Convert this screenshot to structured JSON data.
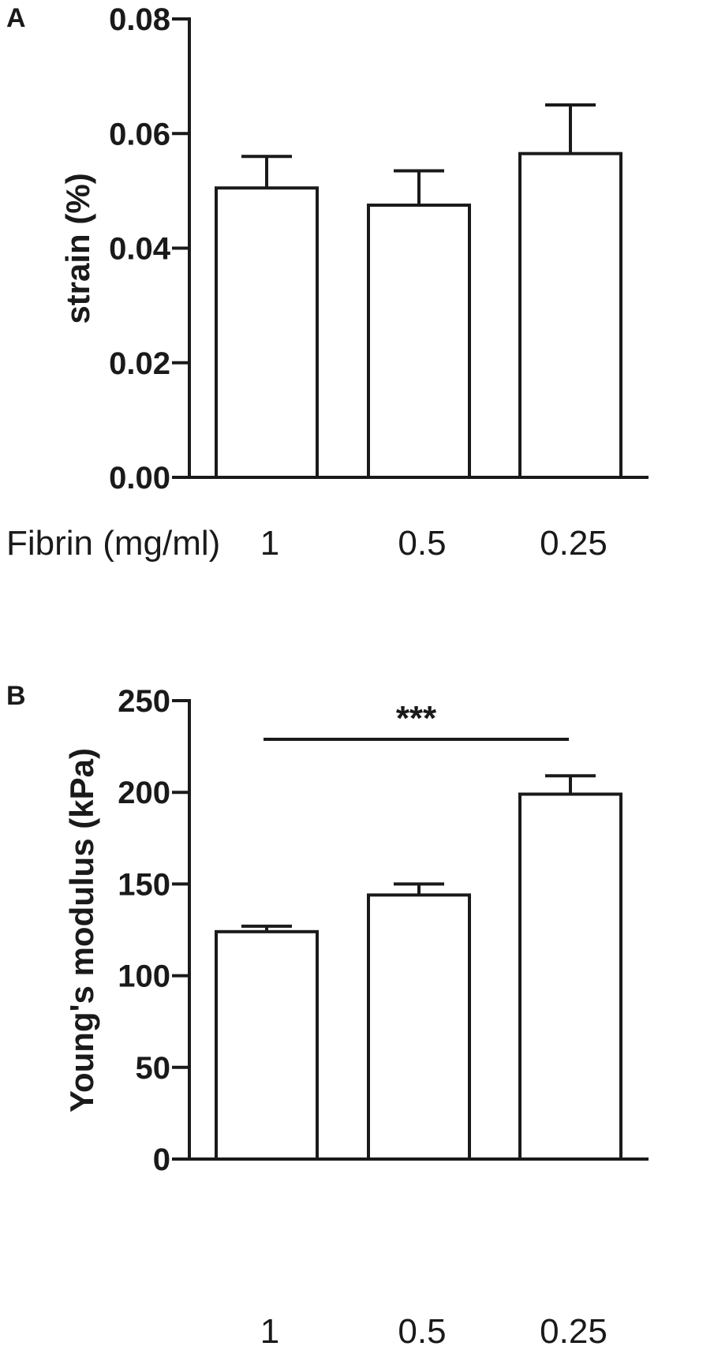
{
  "chart_data": [
    {
      "panel": "A",
      "type": "bar",
      "categories": [
        "1",
        "0.5",
        "0.25"
      ],
      "category_axis_label": "Fibrin (mg/ml)",
      "ylabel": "strain (%)",
      "ylim": [
        0,
        0.08
      ],
      "yticks": [
        "0.00",
        "0.02",
        "0.04",
        "0.06",
        "0.08"
      ],
      "values": [
        0.0505,
        0.0475,
        0.0565
      ],
      "errors": [
        0.0055,
        0.006,
        0.0085
      ],
      "grid": false,
      "bar_fill": "#ffffff",
      "line_color": "#1a1a1a"
    },
    {
      "panel": "B",
      "type": "bar",
      "categories": [
        "1",
        "0.5",
        "0.25"
      ],
      "ylabel": "Young's modulus (kPa)",
      "ylim": [
        0,
        250
      ],
      "yticks": [
        "0",
        "50",
        "100",
        "150",
        "200",
        "250"
      ],
      "values": [
        124,
        144,
        199
      ],
      "errors": [
        3,
        6,
        10
      ],
      "significance": {
        "label": "***",
        "from": "1",
        "to": "0.25"
      },
      "grid": false,
      "bar_fill": "#ffffff",
      "line_color": "#1a1a1a"
    }
  ]
}
